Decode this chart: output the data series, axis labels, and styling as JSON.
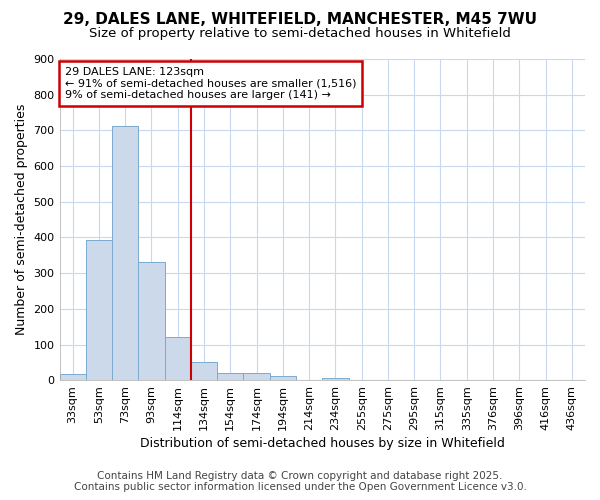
{
  "title1": "29, DALES LANE, WHITEFIELD, MANCHESTER, M45 7WU",
  "title2": "Size of property relative to semi-detached houses in Whitefield",
  "xlabel": "Distribution of semi-detached houses by size in Whitefield",
  "ylabel": "Number of semi-detached properties",
  "annotation_title": "29 DALES LANE: 123sqm",
  "annotation_line1": "← 91% of semi-detached houses are smaller (1,516)",
  "annotation_line2": "9% of semi-detached houses are larger (141) →",
  "footer1": "Contains HM Land Registry data © Crown copyright and database right 2025.",
  "footer2": "Contains public sector information licensed under the Open Government Licence v3.0.",
  "bins": [
    "33sqm",
    "53sqm",
    "73sqm",
    "93sqm",
    "114sqm",
    "134sqm",
    "154sqm",
    "174sqm",
    "194sqm",
    "214sqm",
    "234sqm",
    "255sqm",
    "275sqm",
    "295sqm",
    "315sqm",
    "335sqm",
    "376sqm",
    "396sqm",
    "416sqm",
    "436sqm"
  ],
  "values": [
    18,
    393,
    712,
    330,
    120,
    50,
    20,
    20,
    11,
    0,
    6,
    0,
    0,
    0,
    0,
    0,
    0,
    0,
    0,
    0
  ],
  "bar_color": "#ccd9ea",
  "bar_edge_color": "#7aaad0",
  "vline_bar_index": 4,
  "ylim": [
    0,
    900
  ],
  "yticks": [
    0,
    100,
    200,
    300,
    400,
    500,
    600,
    700,
    800,
    900
  ],
  "background_color": "#ffffff",
  "grid_color": "#c8d8f0",
  "vline_color": "#cc0000",
  "annotation_box_color": "#ffffff",
  "annotation_box_edge": "#cc0000",
  "title_fontsize": 11,
  "subtitle_fontsize": 9.5,
  "axis_label_fontsize": 9,
  "tick_fontsize": 8,
  "footer_fontsize": 7.5
}
